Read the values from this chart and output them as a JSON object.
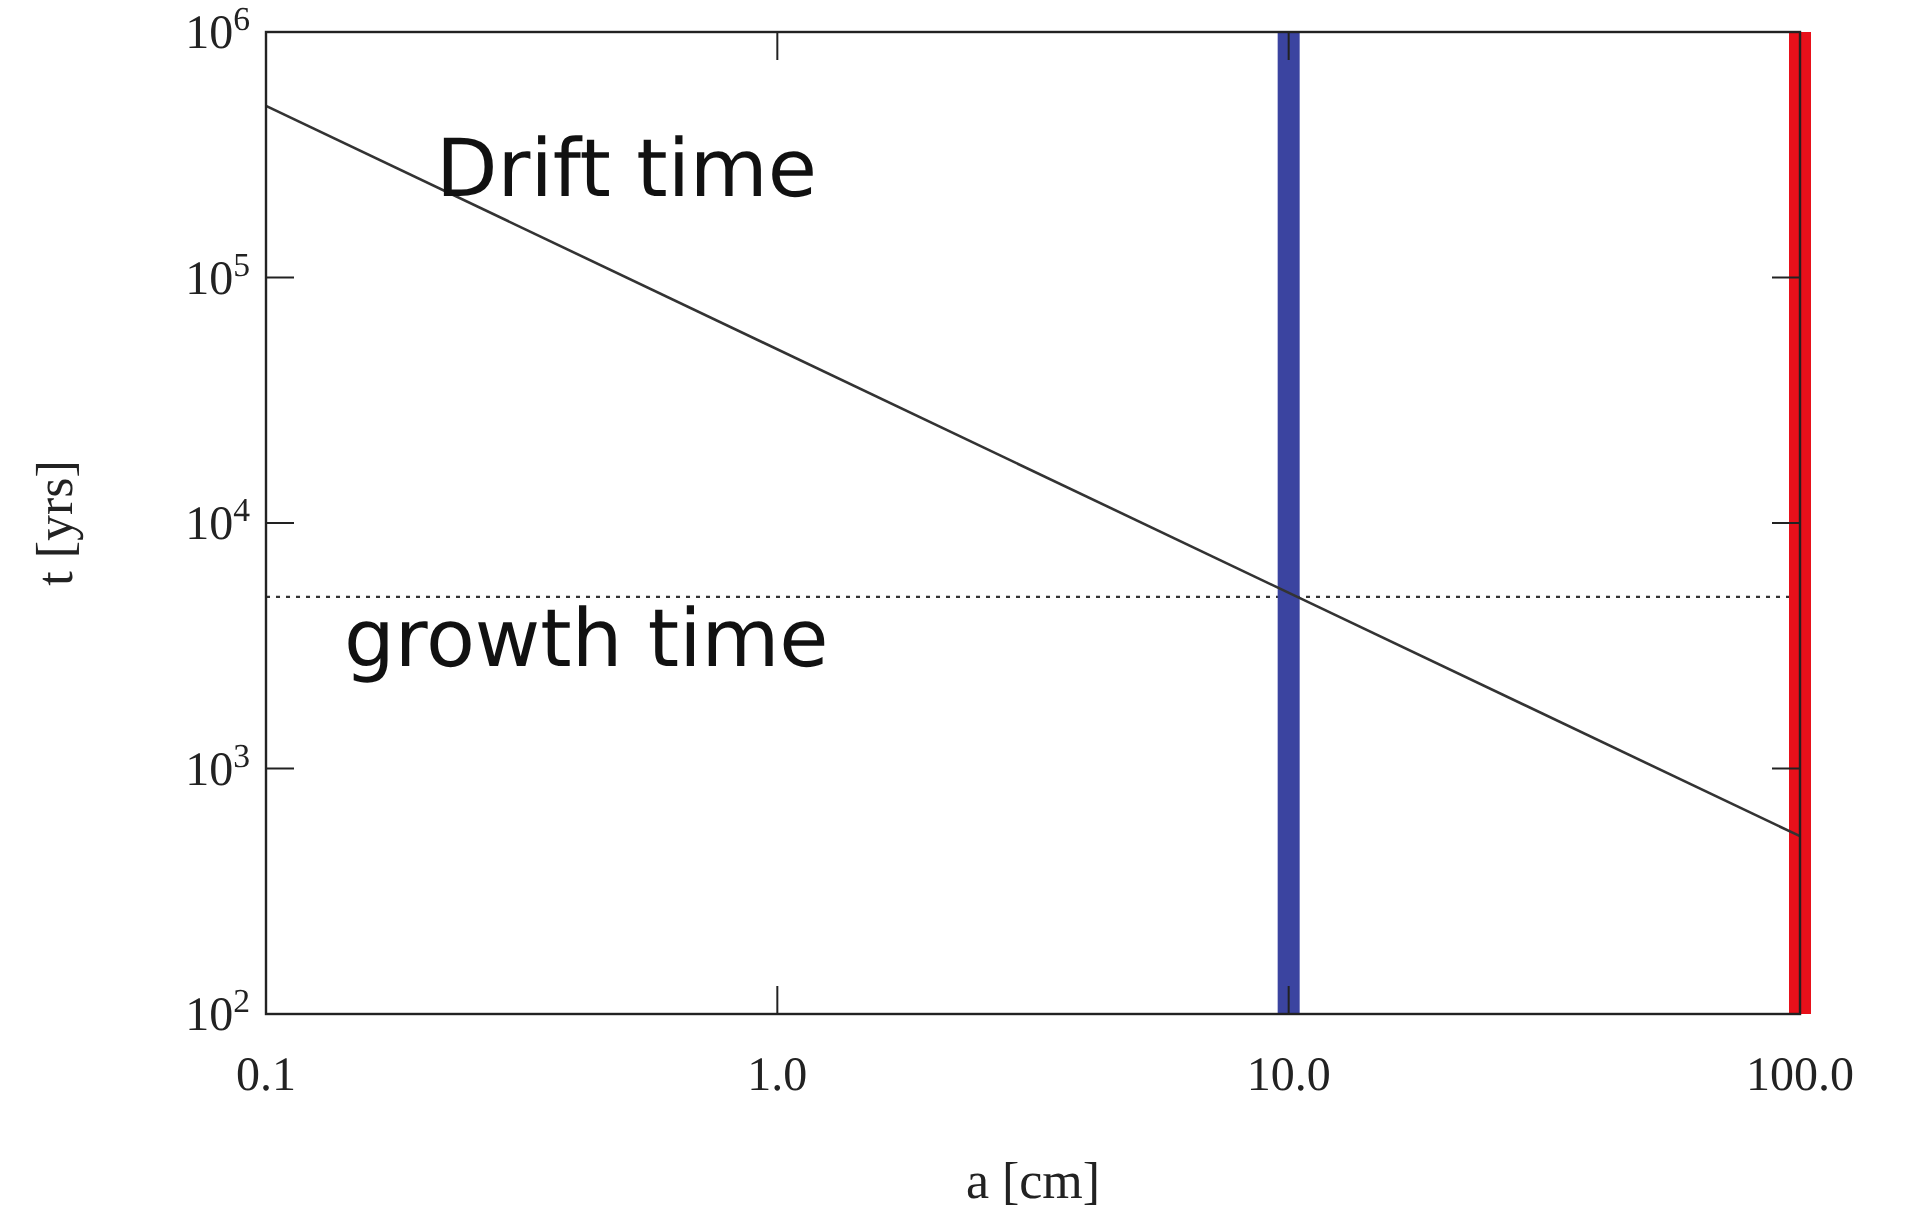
{
  "chart_data": {
    "type": "line",
    "xlabel": "a [cm]",
    "ylabel": "t [yrs]",
    "log": "xy",
    "grid": false,
    "xlim": [
      0.1,
      100
    ],
    "ylim": [
      100,
      1000000
    ],
    "xticks": [
      {
        "value": 0.1,
        "label": "0.1"
      },
      {
        "value": 1,
        "label": "1.0"
      },
      {
        "value": 10,
        "label": "10.0"
      },
      {
        "value": 100,
        "label": "100.0"
      }
    ],
    "yticks": [
      {
        "value": 100,
        "label": "10$^{2}$"
      },
      {
        "value": 1000,
        "label": "10$^{3}$"
      },
      {
        "value": 10000,
        "label": "10$^{4}$"
      },
      {
        "value": 100000,
        "label": "10$^{5}$"
      },
      {
        "value": 1000000,
        "label": "10$^{6}$"
      }
    ],
    "series": [
      {
        "color": "#333333",
        "x": [
          0.1,
          100
        ],
        "values": [
          500000,
          530
        ],
        "line_style": "solid"
      }
    ],
    "ref_lines": [
      {
        "axis": "y",
        "value": 5000,
        "color": "#333333",
        "line_style": "dotted"
      },
      {
        "axis": "x",
        "value": 10,
        "color": "#3b44a0",
        "line_style": "solid"
      },
      {
        "axis": "x",
        "value": 100,
        "color": "#e8101a",
        "line_style": "solid"
      }
    ],
    "annotations": [
      "Drift time",
      "growth time"
    ]
  }
}
